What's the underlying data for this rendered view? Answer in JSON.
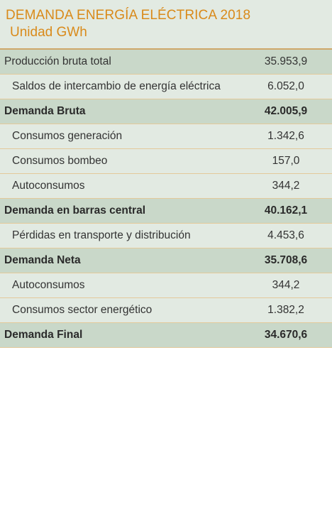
{
  "header": {
    "title": "DEMANDA ENERGÍA ELÉCTRICA 2018",
    "subtitle": "Unidad GWh"
  },
  "rows": [
    {
      "label": "Producción bruta total",
      "value": "35.953,9",
      "kind": "top"
    },
    {
      "label": "Saldos de intercambio de energía eléctrica",
      "value": "6.052,0",
      "kind": "sub"
    },
    {
      "label": "Demanda Bruta",
      "value": "42.005,9",
      "kind": "total"
    },
    {
      "label": "Consumos generación",
      "value": "1.342,6",
      "kind": "sub"
    },
    {
      "label": "Consumos bombeo",
      "value": "157,0",
      "kind": "sub"
    },
    {
      "label": "Autoconsumos",
      "value": "344,2",
      "kind": "sub"
    },
    {
      "label": "Demanda en barras central",
      "value": "40.162,1",
      "kind": "total"
    },
    {
      "label": "Pérdidas en transporte y distribución",
      "value": "4.453,6",
      "kind": "sub"
    },
    {
      "label": "Demanda Neta",
      "value": "35.708,6",
      "kind": "total"
    },
    {
      "label": "Autoconsumos",
      "value": "344,2",
      "kind": "sub"
    },
    {
      "label": "Consumos sector energético",
      "value": "1.382,2",
      "kind": "sub"
    },
    {
      "label": "Demanda Final",
      "value": "34.670,6",
      "kind": "total"
    }
  ]
}
